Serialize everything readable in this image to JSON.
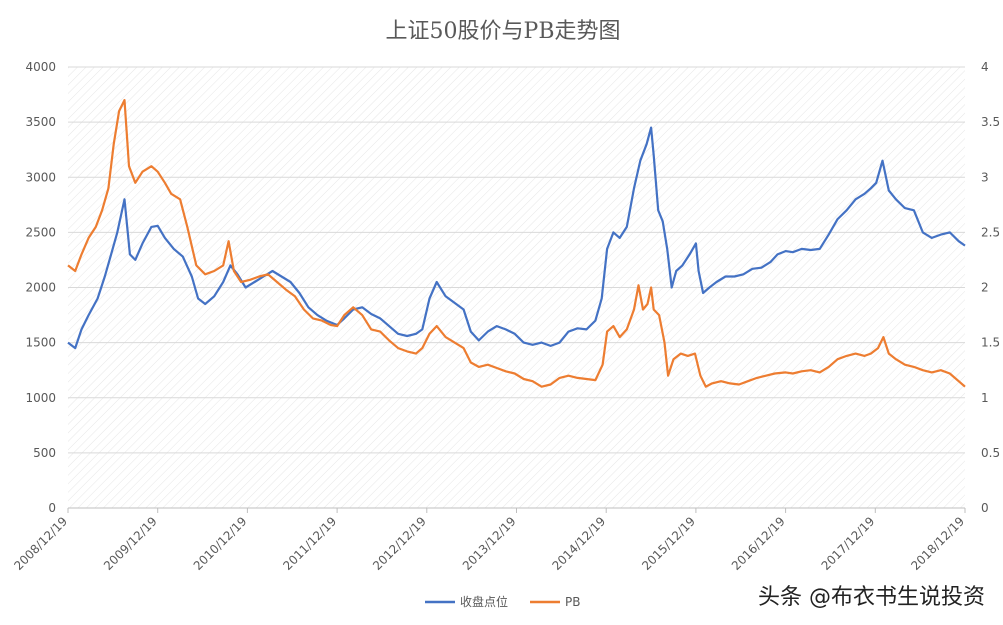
{
  "watermark": "头条 @布衣书生说投资",
  "chart_data": {
    "type": "line",
    "title": "上证50股价与PB走势图",
    "x_ticks": [
      "2008/12/19",
      "2009/12/19",
      "2010/12/19",
      "2011/12/19",
      "2012/12/19",
      "2013/12/19",
      "2014/12/19",
      "2015/12/19",
      "2016/12/19",
      "2017/12/19",
      "2018/12/19"
    ],
    "x_range": [
      2008.97,
      2018.97
    ],
    "y_left": {
      "ticks": [
        "0",
        "500",
        "1000",
        "1500",
        "2000",
        "2500",
        "3000",
        "3500",
        "4000"
      ],
      "range": [
        0,
        4000
      ]
    },
    "y_right": {
      "ticks": [
        "0",
        "0.5",
        "1",
        "1.5",
        "2",
        "2.5",
        "3",
        "3.5",
        "4"
      ],
      "range": [
        0,
        4
      ]
    },
    "grid": true,
    "legend": "bottom",
    "series": [
      {
        "name": "收盘点位",
        "axis": "left",
        "color": "#4472C4",
        "points": [
          [
            2008.97,
            1500
          ],
          [
            2009.05,
            1450
          ],
          [
            2009.12,
            1620
          ],
          [
            2009.2,
            1750
          ],
          [
            2009.3,
            1900
          ],
          [
            2009.38,
            2100
          ],
          [
            2009.45,
            2300
          ],
          [
            2009.52,
            2500
          ],
          [
            2009.6,
            2800
          ],
          [
            2009.66,
            2300
          ],
          [
            2009.72,
            2250
          ],
          [
            2009.8,
            2400
          ],
          [
            2009.9,
            2550
          ],
          [
            2009.97,
            2560
          ],
          [
            2010.05,
            2450
          ],
          [
            2010.15,
            2350
          ],
          [
            2010.25,
            2280
          ],
          [
            2010.35,
            2100
          ],
          [
            2010.42,
            1900
          ],
          [
            2010.5,
            1850
          ],
          [
            2010.6,
            1920
          ],
          [
            2010.7,
            2050
          ],
          [
            2010.78,
            2200
          ],
          [
            2010.86,
            2120
          ],
          [
            2010.95,
            2000
          ],
          [
            2011.05,
            2050
          ],
          [
            2011.15,
            2100
          ],
          [
            2011.25,
            2150
          ],
          [
            2011.35,
            2100
          ],
          [
            2011.45,
            2050
          ],
          [
            2011.55,
            1950
          ],
          [
            2011.65,
            1820
          ],
          [
            2011.75,
            1750
          ],
          [
            2011.85,
            1700
          ],
          [
            2011.97,
            1660
          ],
          [
            2012.05,
            1720
          ],
          [
            2012.15,
            1800
          ],
          [
            2012.25,
            1820
          ],
          [
            2012.35,
            1760
          ],
          [
            2012.45,
            1720
          ],
          [
            2012.55,
            1650
          ],
          [
            2012.65,
            1580
          ],
          [
            2012.75,
            1560
          ],
          [
            2012.85,
            1580
          ],
          [
            2012.92,
            1620
          ],
          [
            2013.0,
            1900
          ],
          [
            2013.08,
            2050
          ],
          [
            2013.18,
            1920
          ],
          [
            2013.28,
            1860
          ],
          [
            2013.38,
            1800
          ],
          [
            2013.46,
            1600
          ],
          [
            2013.55,
            1520
          ],
          [
            2013.65,
            1600
          ],
          [
            2013.75,
            1650
          ],
          [
            2013.85,
            1620
          ],
          [
            2013.95,
            1580
          ],
          [
            2014.05,
            1500
          ],
          [
            2014.15,
            1480
          ],
          [
            2014.25,
            1500
          ],
          [
            2014.35,
            1470
          ],
          [
            2014.45,
            1500
          ],
          [
            2014.55,
            1600
          ],
          [
            2014.65,
            1630
          ],
          [
            2014.75,
            1620
          ],
          [
            2014.85,
            1700
          ],
          [
            2014.92,
            1900
          ],
          [
            2014.98,
            2350
          ],
          [
            2015.05,
            2500
          ],
          [
            2015.12,
            2450
          ],
          [
            2015.2,
            2550
          ],
          [
            2015.28,
            2900
          ],
          [
            2015.35,
            3150
          ],
          [
            2015.42,
            3300
          ],
          [
            2015.47,
            3450
          ],
          [
            2015.5,
            3200
          ],
          [
            2015.55,
            2700
          ],
          [
            2015.6,
            2600
          ],
          [
            2015.65,
            2350
          ],
          [
            2015.7,
            2000
          ],
          [
            2015.75,
            2150
          ],
          [
            2015.82,
            2200
          ],
          [
            2015.9,
            2300
          ],
          [
            2015.97,
            2400
          ],
          [
            2016.0,
            2150
          ],
          [
            2016.05,
            1950
          ],
          [
            2016.12,
            2000
          ],
          [
            2016.2,
            2050
          ],
          [
            2016.3,
            2100
          ],
          [
            2016.4,
            2100
          ],
          [
            2016.5,
            2120
          ],
          [
            2016.6,
            2170
          ],
          [
            2016.7,
            2180
          ],
          [
            2016.8,
            2230
          ],
          [
            2016.88,
            2300
          ],
          [
            2016.97,
            2330
          ],
          [
            2017.05,
            2320
          ],
          [
            2017.15,
            2350
          ],
          [
            2017.25,
            2340
          ],
          [
            2017.35,
            2350
          ],
          [
            2017.45,
            2480
          ],
          [
            2017.55,
            2620
          ],
          [
            2017.65,
            2700
          ],
          [
            2017.75,
            2800
          ],
          [
            2017.85,
            2850
          ],
          [
            2017.92,
            2900
          ],
          [
            2017.98,
            2950
          ],
          [
            2018.05,
            3150
          ],
          [
            2018.12,
            2880
          ],
          [
            2018.2,
            2800
          ],
          [
            2018.3,
            2720
          ],
          [
            2018.4,
            2700
          ],
          [
            2018.5,
            2500
          ],
          [
            2018.6,
            2450
          ],
          [
            2018.7,
            2480
          ],
          [
            2018.8,
            2500
          ],
          [
            2018.9,
            2420
          ],
          [
            2018.97,
            2380
          ]
        ]
      },
      {
        "name": "PB",
        "axis": "right",
        "color": "#ED7D31",
        "points": [
          [
            2008.97,
            2.2
          ],
          [
            2009.05,
            2.15
          ],
          [
            2009.12,
            2.3
          ],
          [
            2009.2,
            2.45
          ],
          [
            2009.28,
            2.55
          ],
          [
            2009.35,
            2.7
          ],
          [
            2009.42,
            2.9
          ],
          [
            2009.48,
            3.3
          ],
          [
            2009.54,
            3.6
          ],
          [
            2009.6,
            3.7
          ],
          [
            2009.65,
            3.1
          ],
          [
            2009.72,
            2.95
          ],
          [
            2009.8,
            3.05
          ],
          [
            2009.9,
            3.1
          ],
          [
            2009.97,
            3.05
          ],
          [
            2010.05,
            2.95
          ],
          [
            2010.12,
            2.85
          ],
          [
            2010.22,
            2.8
          ],
          [
            2010.3,
            2.55
          ],
          [
            2010.4,
            2.2
          ],
          [
            2010.5,
            2.12
          ],
          [
            2010.6,
            2.15
          ],
          [
            2010.7,
            2.2
          ],
          [
            2010.76,
            2.42
          ],
          [
            2010.82,
            2.15
          ],
          [
            2010.9,
            2.05
          ],
          [
            2011.0,
            2.07
          ],
          [
            2011.1,
            2.1
          ],
          [
            2011.2,
            2.12
          ],
          [
            2011.3,
            2.05
          ],
          [
            2011.4,
            1.98
          ],
          [
            2011.5,
            1.92
          ],
          [
            2011.6,
            1.8
          ],
          [
            2011.7,
            1.72
          ],
          [
            2011.8,
            1.7
          ],
          [
            2011.9,
            1.66
          ],
          [
            2011.97,
            1.65
          ],
          [
            2012.05,
            1.75
          ],
          [
            2012.15,
            1.82
          ],
          [
            2012.25,
            1.75
          ],
          [
            2012.35,
            1.62
          ],
          [
            2012.45,
            1.6
          ],
          [
            2012.55,
            1.52
          ],
          [
            2012.65,
            1.45
          ],
          [
            2012.75,
            1.42
          ],
          [
            2012.85,
            1.4
          ],
          [
            2012.92,
            1.45
          ],
          [
            2013.0,
            1.58
          ],
          [
            2013.08,
            1.65
          ],
          [
            2013.18,
            1.55
          ],
          [
            2013.28,
            1.5
          ],
          [
            2013.38,
            1.45
          ],
          [
            2013.46,
            1.32
          ],
          [
            2013.55,
            1.28
          ],
          [
            2013.65,
            1.3
          ],
          [
            2013.75,
            1.27
          ],
          [
            2013.85,
            1.24
          ],
          [
            2013.95,
            1.22
          ],
          [
            2014.05,
            1.17
          ],
          [
            2014.15,
            1.15
          ],
          [
            2014.25,
            1.1
          ],
          [
            2014.35,
            1.12
          ],
          [
            2014.45,
            1.18
          ],
          [
            2014.55,
            1.2
          ],
          [
            2014.65,
            1.18
          ],
          [
            2014.75,
            1.17
          ],
          [
            2014.85,
            1.16
          ],
          [
            2014.93,
            1.3
          ],
          [
            2014.98,
            1.6
          ],
          [
            2015.05,
            1.65
          ],
          [
            2015.12,
            1.55
          ],
          [
            2015.2,
            1.62
          ],
          [
            2015.28,
            1.8
          ],
          [
            2015.33,
            2.02
          ],
          [
            2015.38,
            1.8
          ],
          [
            2015.43,
            1.85
          ],
          [
            2015.47,
            2.0
          ],
          [
            2015.5,
            1.8
          ],
          [
            2015.56,
            1.75
          ],
          [
            2015.62,
            1.5
          ],
          [
            2015.66,
            1.2
          ],
          [
            2015.72,
            1.35
          ],
          [
            2015.8,
            1.4
          ],
          [
            2015.88,
            1.38
          ],
          [
            2015.96,
            1.4
          ],
          [
            2016.02,
            1.2
          ],
          [
            2016.08,
            1.1
          ],
          [
            2016.15,
            1.13
          ],
          [
            2016.25,
            1.15
          ],
          [
            2016.35,
            1.13
          ],
          [
            2016.45,
            1.12
          ],
          [
            2016.55,
            1.15
          ],
          [
            2016.65,
            1.18
          ],
          [
            2016.75,
            1.2
          ],
          [
            2016.85,
            1.22
          ],
          [
            2016.97,
            1.23
          ],
          [
            2017.05,
            1.22
          ],
          [
            2017.15,
            1.24
          ],
          [
            2017.25,
            1.25
          ],
          [
            2017.35,
            1.23
          ],
          [
            2017.45,
            1.28
          ],
          [
            2017.55,
            1.35
          ],
          [
            2017.65,
            1.38
          ],
          [
            2017.75,
            1.4
          ],
          [
            2017.85,
            1.38
          ],
          [
            2017.92,
            1.4
          ],
          [
            2018.0,
            1.45
          ],
          [
            2018.06,
            1.55
          ],
          [
            2018.12,
            1.4
          ],
          [
            2018.2,
            1.35
          ],
          [
            2018.3,
            1.3
          ],
          [
            2018.4,
            1.28
          ],
          [
            2018.5,
            1.25
          ],
          [
            2018.6,
            1.23
          ],
          [
            2018.7,
            1.25
          ],
          [
            2018.8,
            1.22
          ],
          [
            2018.9,
            1.15
          ],
          [
            2018.97,
            1.1
          ]
        ]
      }
    ]
  }
}
